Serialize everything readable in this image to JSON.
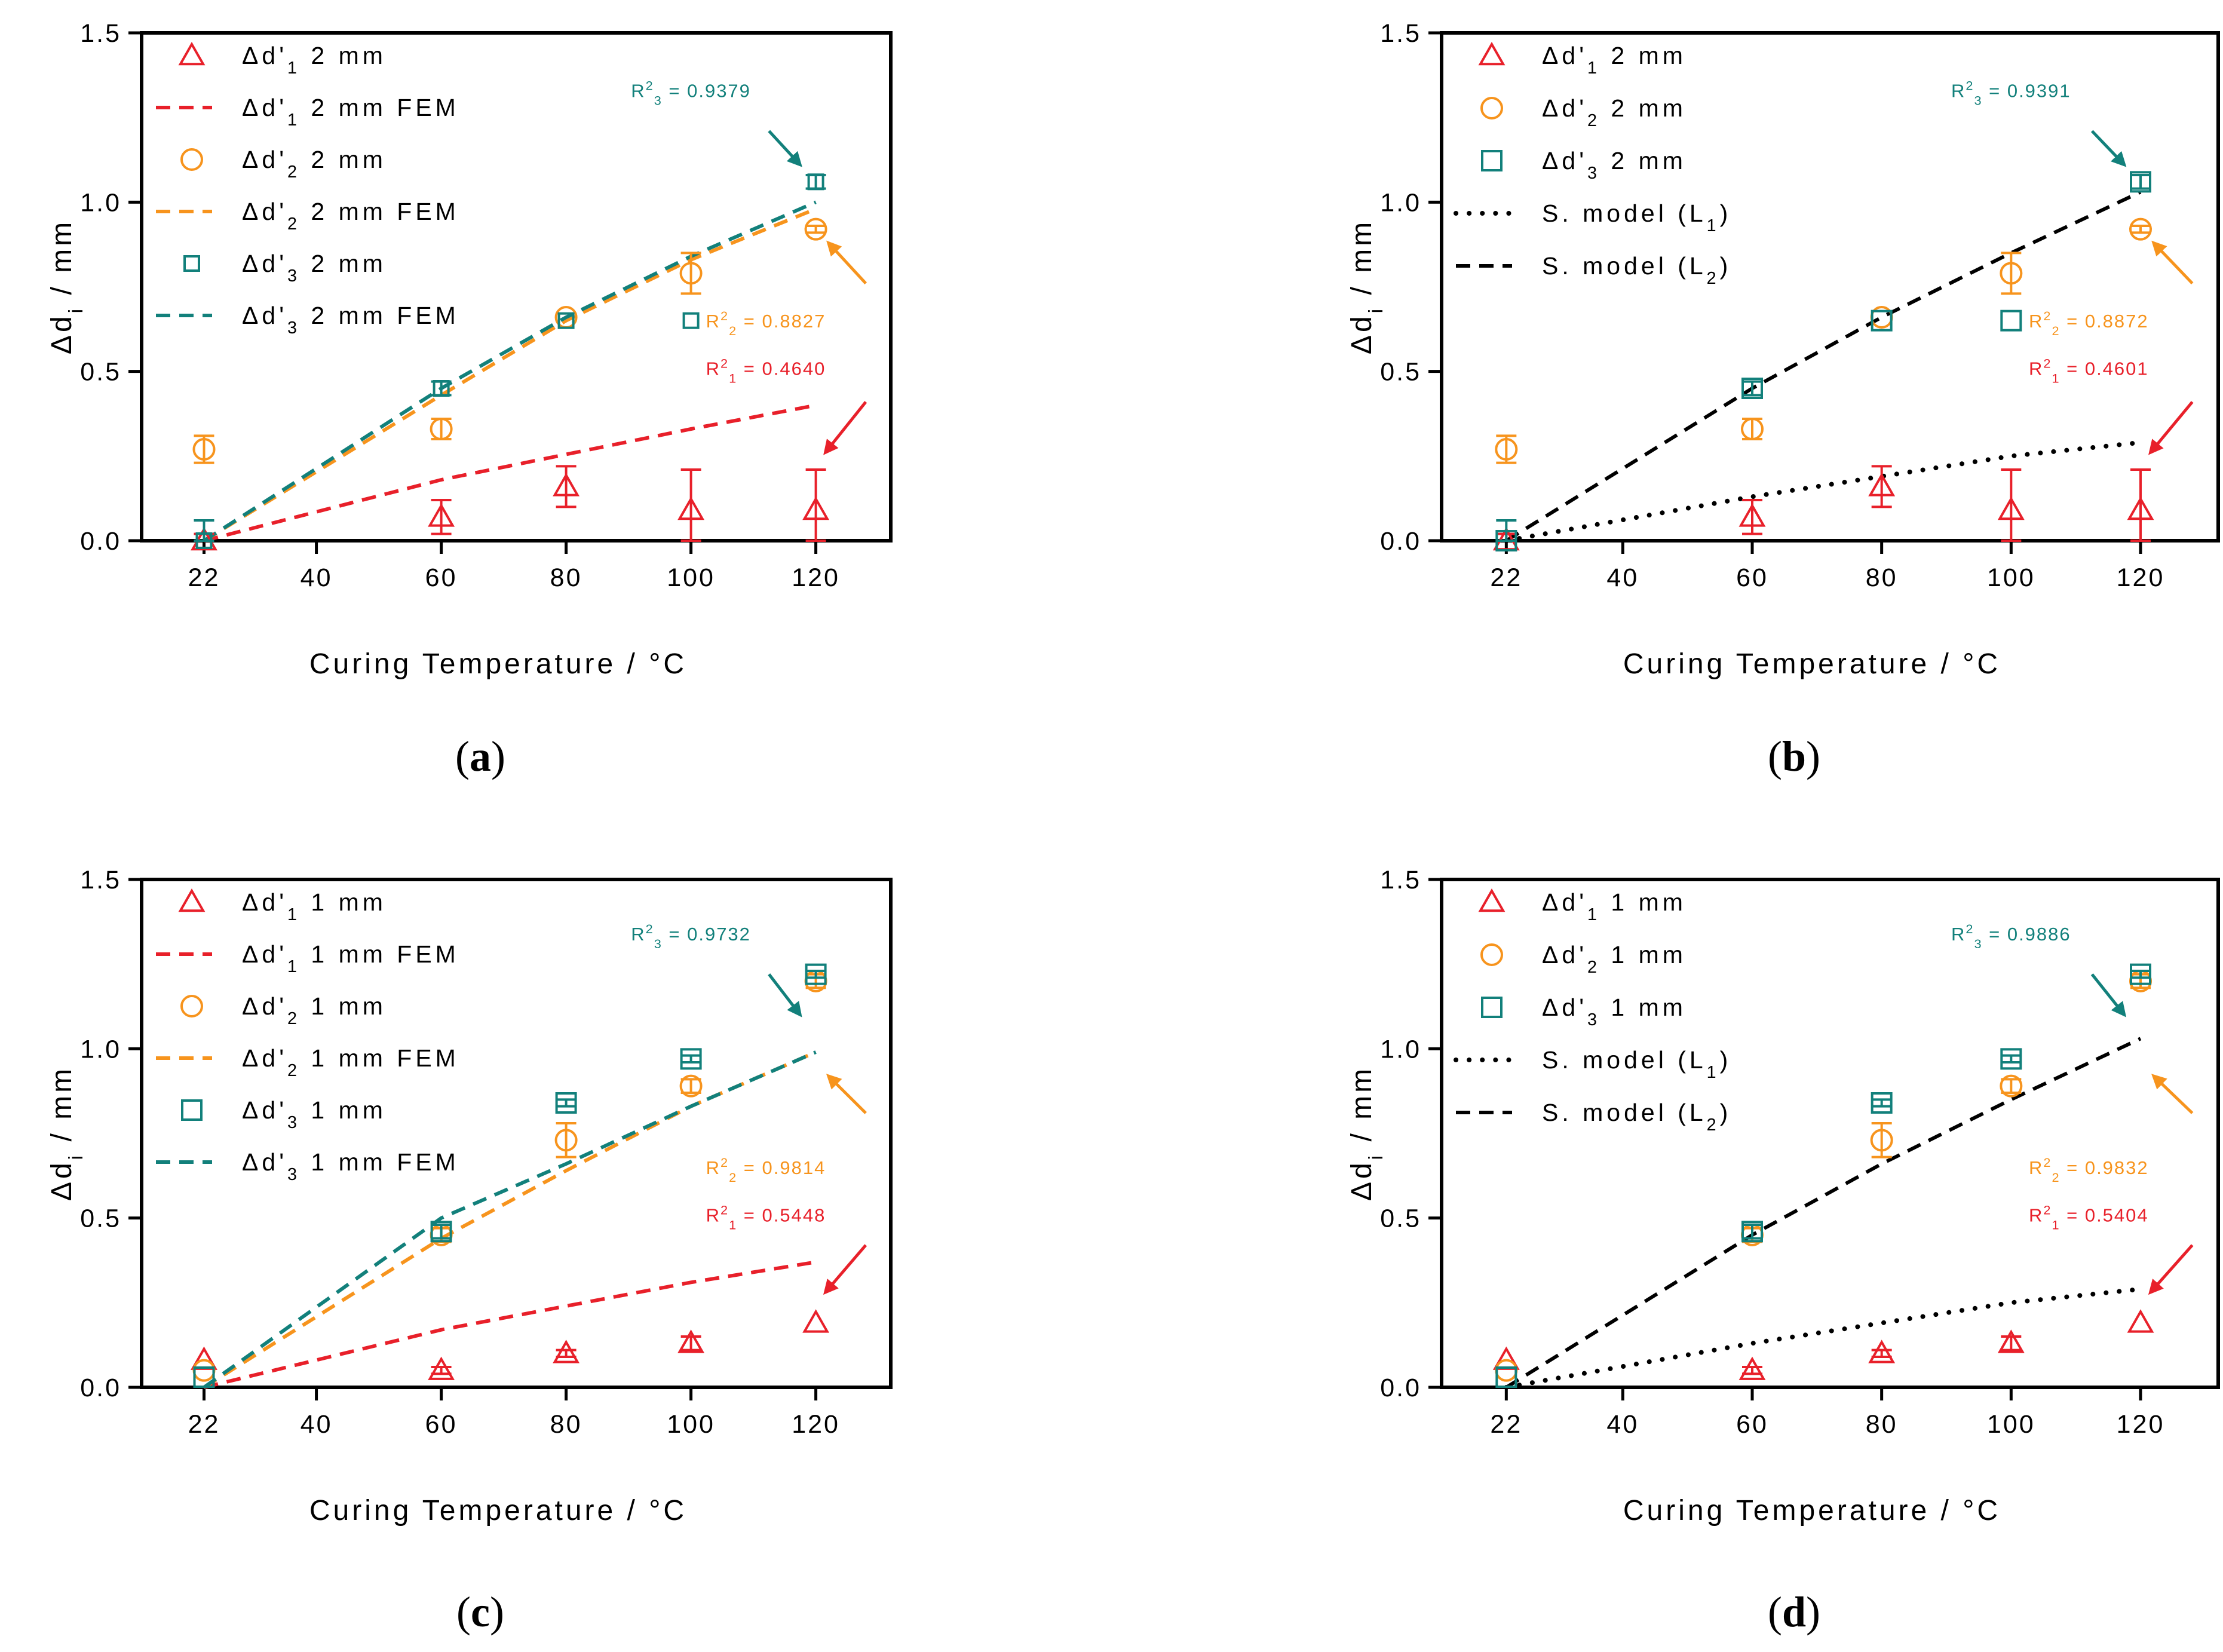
{
  "colors": {
    "d1": "#e8202a",
    "d2": "#f7941d",
    "d3": "#12807b",
    "model": "#000000"
  },
  "chart_data": [
    {
      "type": "scatter",
      "panel_label": "(a)",
      "xlabel": "Curing Temperature / °C",
      "ylabel": "Δd_i / mm",
      "xlim": [
        12,
        132
      ],
      "ylim": [
        0,
        1.5
      ],
      "xticks": [
        22,
        40,
        60,
        80,
        100,
        120
      ],
      "yticks": [
        0.0,
        0.5,
        1.0,
        1.5
      ],
      "ytick_labels": [
        "0.0",
        "0.5",
        "1.0",
        "1.5"
      ],
      "legend": [
        {
          "kind": "triangle",
          "color": "d1",
          "label": "Δd'1 2 mm"
        },
        {
          "kind": "dash",
          "color": "d1",
          "label": "Δd'1 2 mm FEM"
        },
        {
          "kind": "circle",
          "color": "d2",
          "label": "Δd'2 2 mm"
        },
        {
          "kind": "dash",
          "color": "d2",
          "label": "Δd'2 2 mm FEM"
        },
        {
          "kind": "square-small",
          "color": "d3",
          "label": "Δd'3 2 mm"
        },
        {
          "kind": "dash",
          "color": "d3",
          "label": "Δd'3 2 mm FEM"
        }
      ],
      "series": [
        {
          "name": "Δd'1 2 mm",
          "marker": "triangle",
          "color": "d1",
          "x": [
            22,
            60,
            80,
            100,
            120
          ],
          "y": [
            0.0,
            0.07,
            0.16,
            0.09,
            0.09
          ],
          "err": [
            0.02,
            0.05,
            0.06,
            0.12,
            0.12
          ]
        },
        {
          "name": "Δd'2 2 mm",
          "marker": "circle",
          "color": "d2",
          "x": [
            22,
            60,
            80,
            100,
            120
          ],
          "y": [
            0.27,
            0.33,
            0.66,
            0.79,
            0.92
          ],
          "err": [
            0.04,
            0.03,
            0.0,
            0.06,
            0.01
          ]
        },
        {
          "name": "Δd'3 2 mm",
          "marker": "square-small",
          "color": "d3",
          "x": [
            22,
            60,
            80,
            100,
            120
          ],
          "y": [
            0.0,
            0.45,
            0.65,
            0.65,
            1.06
          ],
          "err": [
            0.06,
            0.02,
            0.0,
            0.0,
            0.02
          ]
        }
      ],
      "lines": [
        {
          "name": "Δd'1 2 mm FEM",
          "style": "dash",
          "color": "d1",
          "x": [
            22,
            60,
            100,
            120
          ],
          "y": [
            0.0,
            0.18,
            0.33,
            0.4
          ]
        },
        {
          "name": "Δd'2 2 mm FEM",
          "style": "dash",
          "color": "d2",
          "x": [
            22,
            60,
            80,
            100,
            120
          ],
          "y": [
            0.0,
            0.43,
            0.65,
            0.83,
            0.98
          ]
        },
        {
          "name": "Δd'3 2 mm FEM",
          "style": "dash",
          "color": "d3",
          "x": [
            22,
            60,
            80,
            100,
            120
          ],
          "y": [
            0.0,
            0.45,
            0.66,
            0.84,
            1.0
          ]
        }
      ],
      "annotations": [
        {
          "text": "R²3 = 0.9379",
          "color": "d3",
          "x": 100,
          "y": 1.31,
          "arrow_from": [
            112.5,
            1.21
          ],
          "arrow_to": [
            117.5,
            1.11
          ]
        },
        {
          "text": "R²2 = 0.8827",
          "color": "d2",
          "x": 112,
          "y": 0.63,
          "arrow_from": [
            128,
            0.76
          ],
          "arrow_to": [
            122,
            0.88
          ]
        },
        {
          "text": "R²1 = 0.4640",
          "color": "d1",
          "x": 112,
          "y": 0.49,
          "arrow_from": [
            128,
            0.41
          ],
          "arrow_to": [
            121.5,
            0.26
          ]
        }
      ]
    },
    {
      "type": "scatter",
      "panel_label": "(b)",
      "xlabel": "Curing Temperature / °C",
      "ylabel": "Δd_i / mm",
      "xlim": [
        12,
        132
      ],
      "ylim": [
        0,
        1.5
      ],
      "xticks": [
        22,
        40,
        60,
        80,
        100,
        120
      ],
      "yticks": [
        0.0,
        0.5,
        1.0,
        1.5
      ],
      "ytick_labels": [
        "0.0",
        "0.5",
        "1.0",
        "1.5"
      ],
      "legend": [
        {
          "kind": "triangle",
          "color": "d1",
          "label": "Δd'1 2 mm"
        },
        {
          "kind": "circle",
          "color": "d2",
          "label": "Δd'2 2 mm"
        },
        {
          "kind": "square",
          "color": "d3",
          "label": "Δd'3 2 mm"
        },
        {
          "kind": "dot",
          "color": "model",
          "label": "S. model (L1)"
        },
        {
          "kind": "dash",
          "color": "model",
          "label": "S. model (L2)"
        }
      ],
      "series": [
        {
          "name": "Δd'1 2 mm",
          "marker": "triangle",
          "color": "d1",
          "x": [
            22,
            60,
            80,
            100,
            120
          ],
          "y": [
            0.0,
            0.07,
            0.16,
            0.09,
            0.09
          ],
          "err": [
            0.02,
            0.05,
            0.06,
            0.12,
            0.12
          ]
        },
        {
          "name": "Δd'2 2 mm",
          "marker": "circle",
          "color": "d2",
          "x": [
            22,
            60,
            80,
            100,
            120
          ],
          "y": [
            0.27,
            0.33,
            0.66,
            0.79,
            0.92
          ],
          "err": [
            0.04,
            0.03,
            0.0,
            0.06,
            0.01
          ]
        },
        {
          "name": "Δd'3 2 mm",
          "marker": "square",
          "color": "d3",
          "x": [
            22,
            60,
            80,
            100,
            120
          ],
          "y": [
            0.0,
            0.45,
            0.65,
            0.65,
            1.06
          ],
          "err": [
            0.06,
            0.02,
            0.0,
            0.0,
            0.02
          ]
        }
      ],
      "lines": [
        {
          "name": "S. model (L1)",
          "style": "dot",
          "color": "model",
          "x": [
            22,
            60,
            80,
            100,
            120
          ],
          "y": [
            0.0,
            0.13,
            0.19,
            0.25,
            0.29
          ]
        },
        {
          "name": "S. model (L2)",
          "style": "dash",
          "color": "model",
          "x": [
            22,
            60,
            80,
            100,
            120
          ],
          "y": [
            0.0,
            0.45,
            0.66,
            0.85,
            1.03
          ]
        }
      ],
      "annotations": [
        {
          "text": "R²3 = 0.9391",
          "color": "d3",
          "x": 100,
          "y": 1.31,
          "arrow_from": [
            112.5,
            1.21
          ],
          "arrow_to": [
            117.5,
            1.11
          ]
        },
        {
          "text": "R²2 = 0.8872",
          "color": "d2",
          "x": 112,
          "y": 0.63,
          "arrow_from": [
            128,
            0.76
          ],
          "arrow_to": [
            122,
            0.88
          ]
        },
        {
          "text": "R²1 = 0.4601",
          "color": "d1",
          "x": 112,
          "y": 0.49,
          "arrow_from": [
            128,
            0.41
          ],
          "arrow_to": [
            121.5,
            0.26
          ]
        }
      ]
    },
    {
      "type": "scatter",
      "panel_label": "(c)",
      "xlabel": "Curing Temperature / °C",
      "ylabel": "Δd_i / mm",
      "xlim": [
        12,
        132
      ],
      "ylim": [
        0,
        1.5
      ],
      "xticks": [
        22,
        40,
        60,
        80,
        100,
        120
      ],
      "yticks": [
        0.0,
        0.5,
        1.0,
        1.5
      ],
      "ytick_labels": [
        "0.0",
        "0.5",
        "1.0",
        "1.5"
      ],
      "legend": [
        {
          "kind": "triangle",
          "color": "d1",
          "label": "Δd'1 1 mm"
        },
        {
          "kind": "dash",
          "color": "d1",
          "label": "Δd'1 1 mm FEM"
        },
        {
          "kind": "circle",
          "color": "d2",
          "label": "Δd'2 1 mm"
        },
        {
          "kind": "dash",
          "color": "d2",
          "label": "Δd'2 1 mm FEM"
        },
        {
          "kind": "square",
          "color": "d3",
          "label": "Δd'3 1 mm"
        },
        {
          "kind": "dash",
          "color": "d3",
          "label": "Δd'3 1 mm FEM"
        }
      ],
      "series": [
        {
          "name": "Δd'1 1 mm",
          "marker": "triangle",
          "color": "d1",
          "x": [
            22,
            60,
            80,
            100,
            120
          ],
          "y": [
            0.08,
            0.05,
            0.1,
            0.13,
            0.19
          ],
          "err": [
            0.0,
            0.01,
            0.01,
            0.02,
            0.0
          ]
        },
        {
          "name": "Δd'2 1 mm",
          "marker": "circle",
          "color": "d2",
          "x": [
            22,
            60,
            80,
            100,
            120
          ],
          "y": [
            0.05,
            0.45,
            0.73,
            0.89,
            1.2
          ],
          "err": [
            0.0,
            0.02,
            0.05,
            0.02,
            0.02
          ]
        },
        {
          "name": "Δd'3 1 mm",
          "marker": "square",
          "color": "d3",
          "x": [
            22,
            60,
            80,
            100,
            120
          ],
          "y": [
            0.03,
            0.46,
            0.84,
            0.97,
            1.22
          ],
          "err": [
            0.0,
            0.02,
            0.01,
            0.01,
            0.01
          ]
        }
      ],
      "lines": [
        {
          "name": "Δd'1 1 mm FEM",
          "style": "dash",
          "color": "d1",
          "x": [
            22,
            60,
            80,
            100,
            120
          ],
          "y": [
            0.0,
            0.17,
            0.24,
            0.31,
            0.37
          ]
        },
        {
          "name": "Δd'2 1 mm FEM",
          "style": "dash",
          "color": "d2",
          "x": [
            22,
            60,
            80,
            100,
            120
          ],
          "y": [
            0.0,
            0.44,
            0.64,
            0.83,
            0.99
          ]
        },
        {
          "name": "Δd'3 1 mm FEM",
          "style": "dash",
          "color": "d3",
          "x": [
            22,
            60,
            80,
            100,
            120
          ],
          "y": [
            0.0,
            0.5,
            0.66,
            0.83,
            0.99
          ]
        }
      ],
      "annotations": [
        {
          "text": "R²3 = 0.9732",
          "color": "d3",
          "x": 100,
          "y": 1.32,
          "arrow_from": [
            112.5,
            1.22
          ],
          "arrow_to": [
            117.5,
            1.1
          ]
        },
        {
          "text": "R²2 = 0.9814",
          "color": "d2",
          "x": 112,
          "y": 0.63,
          "arrow_from": [
            128,
            0.81
          ],
          "arrow_to": [
            122,
            0.92
          ]
        },
        {
          "text": "R²1 = 0.5448",
          "color": "d1",
          "x": 112,
          "y": 0.49,
          "arrow_from": [
            128,
            0.42
          ],
          "arrow_to": [
            121.5,
            0.28
          ]
        }
      ]
    },
    {
      "type": "scatter",
      "panel_label": "(d)",
      "xlabel": "Curing Temperature / °C",
      "ylabel": "Δd_i / mm",
      "xlim": [
        12,
        132
      ],
      "ylim": [
        0,
        1.5
      ],
      "xticks": [
        22,
        40,
        60,
        80,
        100,
        120
      ],
      "yticks": [
        0.0,
        0.5,
        1.0,
        1.5
      ],
      "ytick_labels": [
        "0.0",
        "0.5",
        "1.0",
        "1.5"
      ],
      "legend": [
        {
          "kind": "triangle",
          "color": "d1",
          "label": "Δd'1 1 mm"
        },
        {
          "kind": "circle",
          "color": "d2",
          "label": "Δd'2 1 mm"
        },
        {
          "kind": "square",
          "color": "d3",
          "label": "Δd'3 1 mm"
        },
        {
          "kind": "dot",
          "color": "model",
          "label": "S. model (L1)"
        },
        {
          "kind": "dash",
          "color": "model",
          "label": "S. model (L2)"
        }
      ],
      "series": [
        {
          "name": "Δd'1 1 mm",
          "marker": "triangle",
          "color": "d1",
          "x": [
            22,
            60,
            80,
            100,
            120
          ],
          "y": [
            0.08,
            0.05,
            0.1,
            0.13,
            0.19
          ],
          "err": [
            0.0,
            0.01,
            0.01,
            0.02,
            0.0
          ]
        },
        {
          "name": "Δd'2 1 mm",
          "marker": "circle",
          "color": "d2",
          "x": [
            22,
            60,
            80,
            100,
            120
          ],
          "y": [
            0.05,
            0.45,
            0.73,
            0.89,
            1.2
          ],
          "err": [
            0.0,
            0.02,
            0.05,
            0.02,
            0.02
          ]
        },
        {
          "name": "Δd'3 1 mm",
          "marker": "square",
          "color": "d3",
          "x": [
            22,
            60,
            80,
            100,
            120
          ],
          "y": [
            0.03,
            0.46,
            0.84,
            0.97,
            1.22
          ],
          "err": [
            0.0,
            0.02,
            0.01,
            0.01,
            0.01
          ]
        }
      ],
      "lines": [
        {
          "name": "S. model (L1)",
          "style": "dot",
          "color": "model",
          "x": [
            22,
            60,
            80,
            100,
            120
          ],
          "y": [
            0.0,
            0.13,
            0.19,
            0.25,
            0.29
          ]
        },
        {
          "name": "S. model (L2)",
          "style": "dash",
          "color": "model",
          "x": [
            22,
            60,
            80,
            100,
            120
          ],
          "y": [
            0.0,
            0.45,
            0.66,
            0.85,
            1.03
          ]
        }
      ],
      "annotations": [
        {
          "text": "R²3 = 0.9886",
          "color": "d3",
          "x": 100,
          "y": 1.32,
          "arrow_from": [
            112.5,
            1.22
          ],
          "arrow_to": [
            117.5,
            1.1
          ]
        },
        {
          "text": "R²2 = 0.9832",
          "color": "d2",
          "x": 112,
          "y": 0.63,
          "arrow_from": [
            128,
            0.81
          ],
          "arrow_to": [
            122,
            0.92
          ]
        },
        {
          "text": "R²1 = 0.5404",
          "color": "d1",
          "x": 112,
          "y": 0.49,
          "arrow_from": [
            128,
            0.42
          ],
          "arrow_to": [
            121.5,
            0.28
          ]
        }
      ]
    }
  ]
}
